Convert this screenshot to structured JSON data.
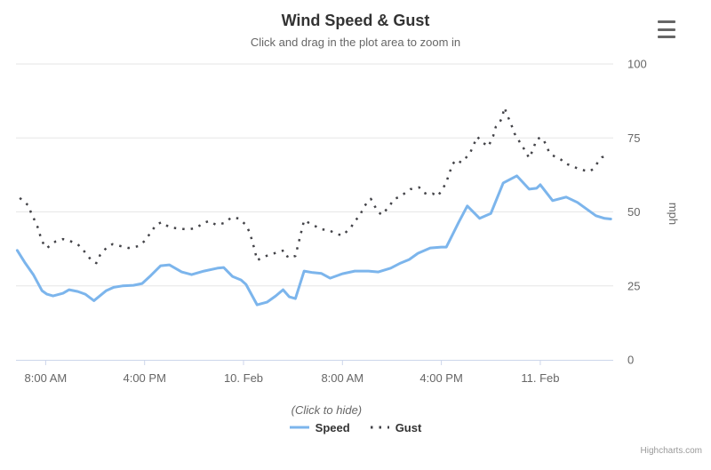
{
  "header": {
    "title": "Wind Speed & Gust",
    "subtitle": "Click and drag in the plot area to zoom in"
  },
  "menu": {
    "icon": "hamburger-icon"
  },
  "legend": {
    "title": "(Click to hide)",
    "items": [
      {
        "label": "Speed",
        "marker": "solid-line",
        "color": "#7cb5ec"
      },
      {
        "label": "Gust",
        "marker": "dotted-line",
        "color": "#434348"
      }
    ]
  },
  "credits": {
    "label": "Highcharts.com"
  },
  "colors": {
    "speed": "#7cb5ec",
    "gust": "#434348",
    "axis_line": "#ccd6eb",
    "gridline": "#e6e6e6",
    "axis_text": "#666666"
  },
  "chart_data": {
    "type": "line",
    "title": "Wind Speed & Gust",
    "subtitle": "Click and drag in the plot area to zoom in",
    "xlabel": "",
    "ylabel": "mph",
    "x_unit": "hours since 9 Feb 00:00",
    "xlim": [
      5.6,
      53.9
    ],
    "ylim": [
      0,
      100
    ],
    "y_ticks": [
      0,
      25,
      50,
      75,
      100
    ],
    "x_ticks": [
      {
        "hour": 8,
        "label": "8:00 AM"
      },
      {
        "hour": 16,
        "label": "4:00 PM"
      },
      {
        "hour": 24,
        "label": "10. Feb"
      },
      {
        "hour": 32,
        "label": "8:00 AM"
      },
      {
        "hour": 40,
        "label": "4:00 PM"
      },
      {
        "hour": 48,
        "label": "11. Feb"
      }
    ],
    "grid": "horizontal",
    "legend_position": "bottom",
    "series": [
      {
        "name": "Speed",
        "color": "#7cb5ec",
        "style": "solid",
        "points": [
          [
            5.7,
            37
          ],
          [
            6.3,
            33
          ],
          [
            7,
            28.8
          ],
          [
            7.7,
            23.4
          ],
          [
            8.1,
            22.2
          ],
          [
            8.6,
            21.6
          ],
          [
            9.4,
            22.5
          ],
          [
            9.9,
            23.7
          ],
          [
            10.6,
            23.1
          ],
          [
            11.2,
            22.2
          ],
          [
            11.9,
            20
          ],
          [
            12.9,
            23.4
          ],
          [
            13.5,
            24.5
          ],
          [
            14.2,
            25
          ],
          [
            15.1,
            25.2
          ],
          [
            15.8,
            25.8
          ],
          [
            16.5,
            28.5
          ],
          [
            17.3,
            31.8
          ],
          [
            18,
            32.1
          ],
          [
            19,
            29.7
          ],
          [
            19.8,
            28.8
          ],
          [
            20.8,
            30
          ],
          [
            21.9,
            31
          ],
          [
            22.4,
            31.2
          ],
          [
            23.1,
            28.2
          ],
          [
            23.8,
            27
          ],
          [
            24.2,
            25.5
          ],
          [
            25.1,
            18.6
          ],
          [
            25.9,
            19.5
          ],
          [
            26.6,
            21.6
          ],
          [
            27.2,
            23.7
          ],
          [
            27.7,
            21.3
          ],
          [
            28.2,
            20.7
          ],
          [
            28.9,
            30
          ],
          [
            29.6,
            29.5
          ],
          [
            30.3,
            29.2
          ],
          [
            31,
            27.6
          ],
          [
            32,
            29.1
          ],
          [
            33,
            30
          ],
          [
            34.1,
            30
          ],
          [
            34.9,
            29.7
          ],
          [
            35.9,
            31
          ],
          [
            36.7,
            32.7
          ],
          [
            37.4,
            33.9
          ],
          [
            38.1,
            36
          ],
          [
            39.1,
            37.8
          ],
          [
            40,
            38.1
          ],
          [
            40.4,
            38.1
          ],
          [
            41.4,
            46.5
          ],
          [
            42.1,
            52
          ],
          [
            43.1,
            47.8
          ],
          [
            44,
            49.5
          ],
          [
            45,
            59.8
          ],
          [
            46.1,
            62.2
          ],
          [
            47.1,
            57.7
          ],
          [
            47.7,
            58
          ],
          [
            48,
            59.2
          ],
          [
            49,
            53.8
          ],
          [
            50.1,
            55
          ],
          [
            51,
            53.2
          ],
          [
            51.8,
            50.8
          ],
          [
            52.5,
            48.7
          ],
          [
            53.2,
            47.8
          ],
          [
            53.7,
            47.6
          ]
        ]
      },
      {
        "name": "Gust",
        "color": "#434348",
        "style": "dotted",
        "points": [
          [
            5.9,
            54.7
          ],
          [
            6.6,
            52.2
          ],
          [
            6.8,
            49.9
          ],
          [
            7.1,
            47.2
          ],
          [
            7.4,
            44.4
          ],
          [
            7.6,
            41.4
          ],
          [
            7.9,
            38.4
          ],
          [
            8.1,
            37.8
          ],
          [
            8.8,
            40
          ],
          [
            9.4,
            40.8
          ],
          [
            9.9,
            40.3
          ],
          [
            10.6,
            39
          ],
          [
            11.2,
            36.3
          ],
          [
            11.7,
            33.6
          ],
          [
            12.1,
            32.7
          ],
          [
            12.4,
            35.4
          ],
          [
            12.9,
            37.8
          ],
          [
            13.4,
            39.1
          ],
          [
            14.1,
            38.4
          ],
          [
            14.7,
            37.8
          ],
          [
            15.5,
            38.4
          ],
          [
            16.1,
            40.5
          ],
          [
            16.5,
            43.2
          ],
          [
            17,
            45.9
          ],
          [
            17.4,
            46.5
          ],
          [
            18,
            44.8
          ],
          [
            18.7,
            44.4
          ],
          [
            19.4,
            44.1
          ],
          [
            20.1,
            44.4
          ],
          [
            20.8,
            46.3
          ],
          [
            21.2,
            46.9
          ],
          [
            21.8,
            45.6
          ],
          [
            22.5,
            46.3
          ],
          [
            23,
            48.1
          ],
          [
            23.6,
            47.8
          ],
          [
            24.2,
            45.6
          ],
          [
            24.5,
            43
          ],
          [
            24.7,
            40.2
          ],
          [
            24.9,
            37.2
          ],
          [
            25.1,
            33.6
          ],
          [
            25.6,
            34.8
          ],
          [
            26.3,
            35.7
          ],
          [
            26.9,
            36.6
          ],
          [
            27.3,
            37
          ],
          [
            27.6,
            34.5
          ],
          [
            28.2,
            35.1
          ],
          [
            28.9,
            47.2
          ],
          [
            29.4,
            46
          ],
          [
            29.9,
            45
          ],
          [
            30.3,
            44.1
          ],
          [
            30.9,
            43.8
          ],
          [
            31.5,
            42.6
          ],
          [
            32,
            42
          ],
          [
            32.3,
            43.2
          ],
          [
            32.7,
            44.8
          ],
          [
            33,
            46.9
          ],
          [
            33.4,
            48.7
          ],
          [
            33.7,
            51.4
          ],
          [
            34,
            53.2
          ],
          [
            34.3,
            54.4
          ],
          [
            34.6,
            52
          ],
          [
            34.9,
            49.9
          ],
          [
            35.2,
            49
          ],
          [
            35.5,
            50.5
          ],
          [
            35.8,
            52
          ],
          [
            36.2,
            54.4
          ],
          [
            36.6,
            55
          ],
          [
            37,
            56.2
          ],
          [
            37.5,
            57.7
          ],
          [
            37.9,
            58
          ],
          [
            38.2,
            58.3
          ],
          [
            38.6,
            56.5
          ],
          [
            38.9,
            55.9
          ],
          [
            39.3,
            56.2
          ],
          [
            39.7,
            55.3
          ],
          [
            40.1,
            57.7
          ],
          [
            40.4,
            60.1
          ],
          [
            40.6,
            62.5
          ],
          [
            40.9,
            66.1
          ],
          [
            41.2,
            67.6
          ],
          [
            41.6,
            66.7
          ],
          [
            41.9,
            67.9
          ],
          [
            42.3,
            69.7
          ],
          [
            42.9,
            75.4
          ],
          [
            43.3,
            73.6
          ],
          [
            43.8,
            72.1
          ],
          [
            44.2,
            75.7
          ],
          [
            44.4,
            78.7
          ],
          [
            44.7,
            80.2
          ],
          [
            44.9,
            81.7
          ],
          [
            45.1,
            85.3
          ],
          [
            45.4,
            82
          ],
          [
            45.6,
            80.2
          ],
          [
            45.7,
            79
          ],
          [
            45.9,
            76.6
          ],
          [
            46.2,
            74.5
          ],
          [
            46.7,
            71.2
          ],
          [
            47.1,
            68.2
          ],
          [
            47.4,
            70.9
          ],
          [
            47.7,
            74.5
          ],
          [
            48,
            75.1
          ],
          [
            48.2,
            74.8
          ],
          [
            48.5,
            72.4
          ],
          [
            48.7,
            70.3
          ],
          [
            49,
            69.1
          ],
          [
            49.3,
            68.5
          ],
          [
            49.7,
            67.6
          ],
          [
            49.9,
            66.7
          ],
          [
            50.2,
            66.1
          ],
          [
            50.6,
            65.5
          ],
          [
            50.9,
            64.9
          ],
          [
            51.3,
            64.3
          ],
          [
            51.6,
            64
          ],
          [
            52,
            63.7
          ],
          [
            52.3,
            64.6
          ],
          [
            52.6,
            66.4
          ],
          [
            53,
            68.5
          ],
          [
            53.5,
            68.8
          ]
        ]
      }
    ]
  }
}
